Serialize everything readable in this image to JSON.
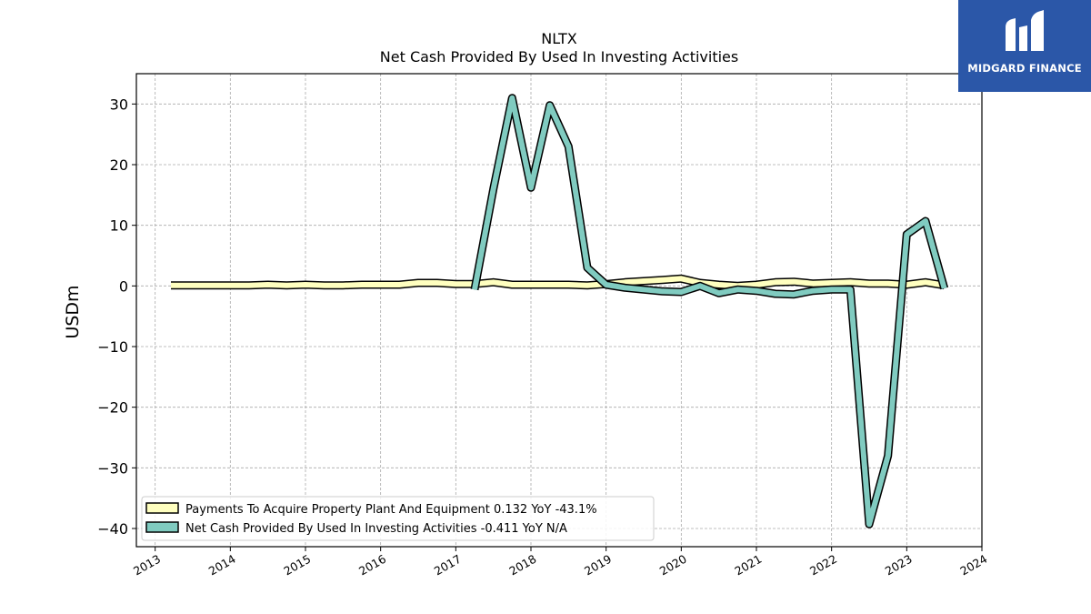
{
  "logo": {
    "text": "MIDGARD FINANCE"
  },
  "chart_data": {
    "type": "line",
    "title": "NLTX",
    "subtitle": "Net Cash Provided By Used In Investing Activities",
    "ylabel": "USDm",
    "xlabel": "",
    "xlim": [
      2012.75,
      2024.0
    ],
    "ylim": [
      -43,
      35
    ],
    "x_ticks": [
      "2013",
      "2014",
      "2015",
      "2016",
      "2017",
      "2018",
      "2019",
      "2020",
      "2021",
      "2022",
      "2023",
      "2024"
    ],
    "y_ticks": [
      "30",
      "20",
      "10",
      "0",
      "−10",
      "−20",
      "−30",
      "−40"
    ],
    "grid": true,
    "legend_position": "lower-left",
    "series": [
      {
        "name": "Payments To Acquire Property Plant And Equipment",
        "legend_label": "Payments To Acquire Property Plant And Equipment  0.132 YoY -43.1%",
        "color": "#ffffbf",
        "x": [
          2013.21,
          2013.5,
          2013.75,
          2014.0,
          2014.25,
          2014.5,
          2014.75,
          2015.0,
          2015.25,
          2015.5,
          2015.75,
          2016.0,
          2016.25,
          2016.5,
          2016.75,
          2017.0,
          2017.25,
          2017.5,
          2017.75,
          2018.0,
          2018.25,
          2018.5,
          2018.75,
          2019.0,
          2019.25,
          2019.5,
          2019.75,
          2020.0,
          2020.25,
          2020.5,
          2020.75,
          2021.0,
          2021.25,
          2021.5,
          2021.75,
          2022.0,
          2022.25,
          2022.5,
          2022.75,
          2023.0,
          2023.25,
          2023.5
        ],
        "values": [
          0.1,
          0.1,
          0.1,
          0.1,
          0.1,
          0.2,
          0.1,
          0.2,
          0.1,
          0.1,
          0.2,
          0.2,
          0.2,
          0.5,
          0.5,
          0.3,
          0.3,
          0.6,
          0.2,
          0.2,
          0.2,
          0.2,
          0.1,
          0.3,
          0.6,
          0.8,
          1.0,
          1.2,
          0.5,
          0.2,
          0.0,
          0.2,
          0.6,
          0.7,
          0.4,
          0.5,
          0.6,
          0.4,
          0.4,
          0.2,
          0.6,
          0.1
        ]
      },
      {
        "name": "Net Cash Provided By Used In Investing Activities",
        "legend_label": "Net Cash Provided By Used In Investing Activities  -0.411 YoY N/A",
        "color": "#80cbc0",
        "x": [
          2017.25,
          2017.5,
          2017.75,
          2018.0,
          2018.25,
          2018.5,
          2018.75,
          2019.0,
          2019.25,
          2019.5,
          2019.75,
          2020.0,
          2020.25,
          2020.5,
          2020.75,
          2021.0,
          2021.25,
          2021.5,
          2021.75,
          2022.0,
          2022.25,
          2022.5,
          2022.75,
          2023.0,
          2023.25,
          2023.5
        ],
        "values": [
          -0.6,
          16.0,
          31.0,
          16.2,
          29.8,
          23.0,
          3.0,
          0.2,
          -0.3,
          -0.6,
          -0.9,
          -1.0,
          0.0,
          -1.2,
          -0.6,
          -0.8,
          -1.3,
          -1.4,
          -0.8,
          -0.6,
          -0.6,
          -39.3,
          -28.0,
          8.5,
          10.7,
          -0.4
        ]
      }
    ]
  }
}
